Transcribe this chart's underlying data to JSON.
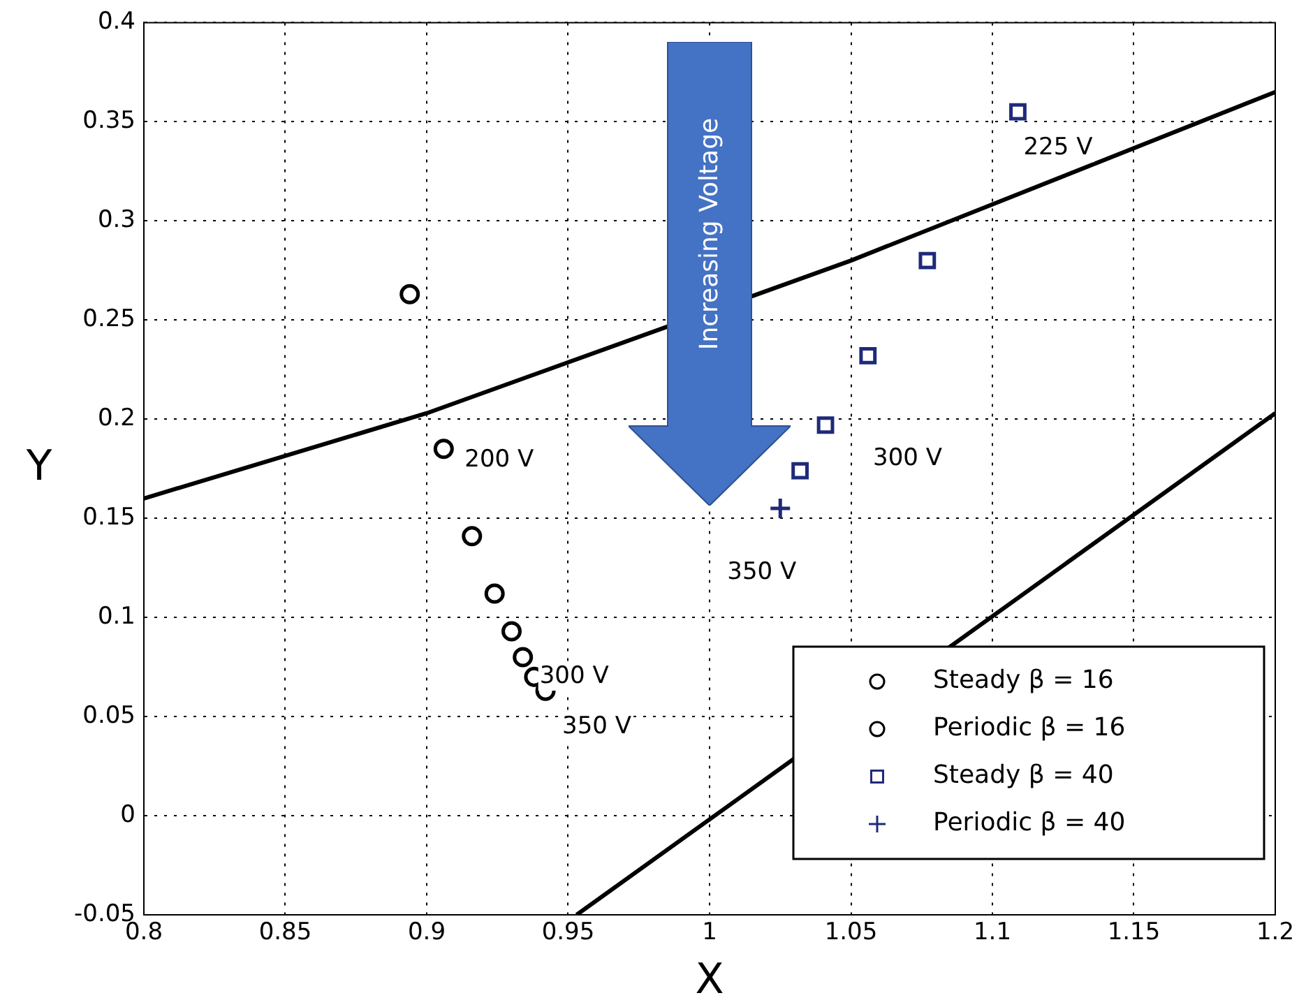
{
  "chart_data": {
    "type": "scatter",
    "xlabel": "X",
    "ylabel": "Y",
    "xlim": [
      0.8,
      1.2
    ],
    "xticks": [
      0.8,
      0.85,
      0.9,
      0.95,
      1,
      1.05,
      1.1,
      1.15,
      1.2
    ],
    "ylim": [
      -0.05,
      0.4
    ],
    "yticks": [
      -0.05,
      0,
      0.05,
      0.1,
      0.15,
      0.2,
      0.25,
      0.3,
      0.35,
      0.4
    ],
    "grid": true,
    "legend": "bottom right",
    "series": [
      {
        "name": "Steady β = 16",
        "marker": "circle",
        "color": "#000000",
        "x": [
          0.894,
          0.906,
          0.916,
          0.924,
          0.93,
          0.934,
          0.938
        ],
        "values": [
          0.263,
          0.185,
          0.141,
          0.112,
          0.093,
          0.08,
          0.07
        ]
      },
      {
        "name": "Periodic β = 16",
        "marker": "circle",
        "color": "#000000",
        "x": [
          0.942
        ],
        "values": [
          0.063
        ]
      },
      {
        "name": "Steady β = 40",
        "marker": "square",
        "color": "#1f2a7a",
        "x": [
          1.109,
          1.077,
          1.056,
          1.041,
          1.032
        ],
        "values": [
          0.355,
          0.28,
          0.232,
          0.197,
          0.174
        ]
      },
      {
        "name": "Periodic β = 40",
        "marker": "cross",
        "color": "#1f2a7a",
        "x": [
          1.025
        ],
        "values": [
          0.155
        ]
      },
      {
        "type": "line",
        "marker": "none",
        "color": "#000000",
        "x": [
          0.8,
          0.9,
          1.05,
          1.2
        ],
        "values": [
          0.16,
          0.203,
          0.28,
          0.365
        ]
      },
      {
        "type": "line",
        "marker": "none",
        "color": "#000000",
        "x": [
          0.953,
          1.2
        ],
        "values": [
          -0.05,
          0.203
        ]
      }
    ],
    "annotations": [
      "Increasing Voltage",
      {
        "text": "200 V",
        "x": 0.906,
        "y": 0.185
      },
      {
        "text": "300 V",
        "x": 0.934,
        "y": 0.08
      },
      {
        "text": "350 V",
        "x": 0.942,
        "y": 0.063
      },
      {
        "text": "225 V",
        "x": 1.109,
        "y": 0.355
      },
      {
        "text": "300 V",
        "x": 1.041,
        "y": 0.197
      },
      {
        "text": "350 V",
        "x": 1.025,
        "y": 0.155
      }
    ]
  }
}
